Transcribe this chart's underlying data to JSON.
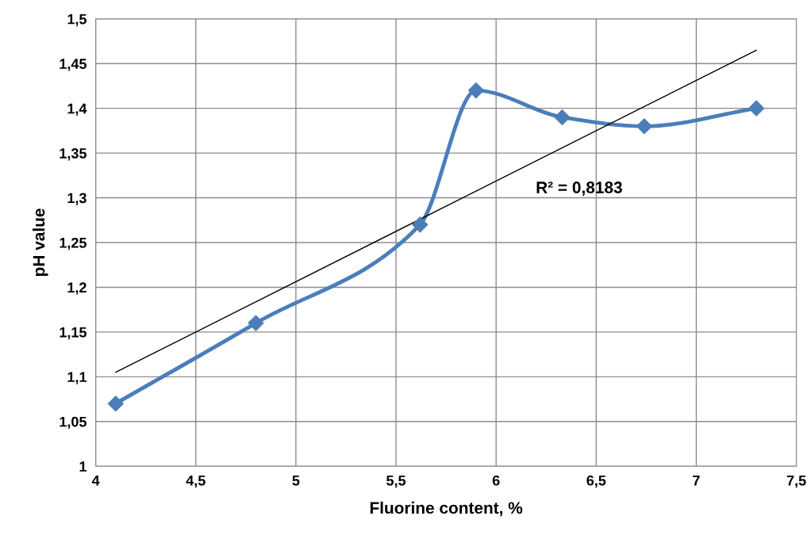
{
  "chart_data": {
    "type": "line",
    "xlabel": "Fluorine content, %",
    "ylabel": "pH value",
    "series": [
      {
        "type": "line",
        "color": "#4a7ebb",
        "marker": "diamond",
        "x": [
          4.1,
          4.8,
          5.62,
          5.9,
          6.33,
          6.74,
          7.3
        ],
        "values": [
          1.07,
          1.16,
          1.27,
          1.42,
          1.39,
          1.38,
          1.4
        ]
      },
      {
        "type": "line",
        "color": "#000000",
        "marker": "none",
        "x": [
          4.1,
          7.3
        ],
        "values": [
          1.105,
          1.465
        ]
      }
    ],
    "annotations": [
      "R² = 0,8183"
    ],
    "xlim": [
      4,
      7.5
    ],
    "xticks": [
      4,
      {
        "value": 4.5,
        "label": "4,5"
      },
      5,
      {
        "value": 5.5,
        "label": "5,5"
      },
      6,
      {
        "value": 6.5,
        "label": "6,5"
      },
      7,
      {
        "value": 7.5,
        "label": "7,5"
      }
    ],
    "ylim": [
      1,
      1.5
    ],
    "yticks": [
      1,
      {
        "value": 1.05,
        "label": "1,05"
      },
      {
        "value": 1.1,
        "label": "1,1"
      },
      {
        "value": 1.15,
        "label": "1,15"
      },
      {
        "value": 1.2,
        "label": "1,2"
      },
      {
        "value": 1.25,
        "label": "1,25"
      },
      {
        "value": 1.3,
        "label": "1,3"
      },
      {
        "value": 1.35,
        "label": "1,35"
      },
      {
        "value": 1.4,
        "label": "1,4"
      },
      {
        "value": 1.45,
        "label": "1,45"
      },
      {
        "value": 1.5,
        "label": "1,5"
      }
    ],
    "grid": true,
    "legend": false
  }
}
